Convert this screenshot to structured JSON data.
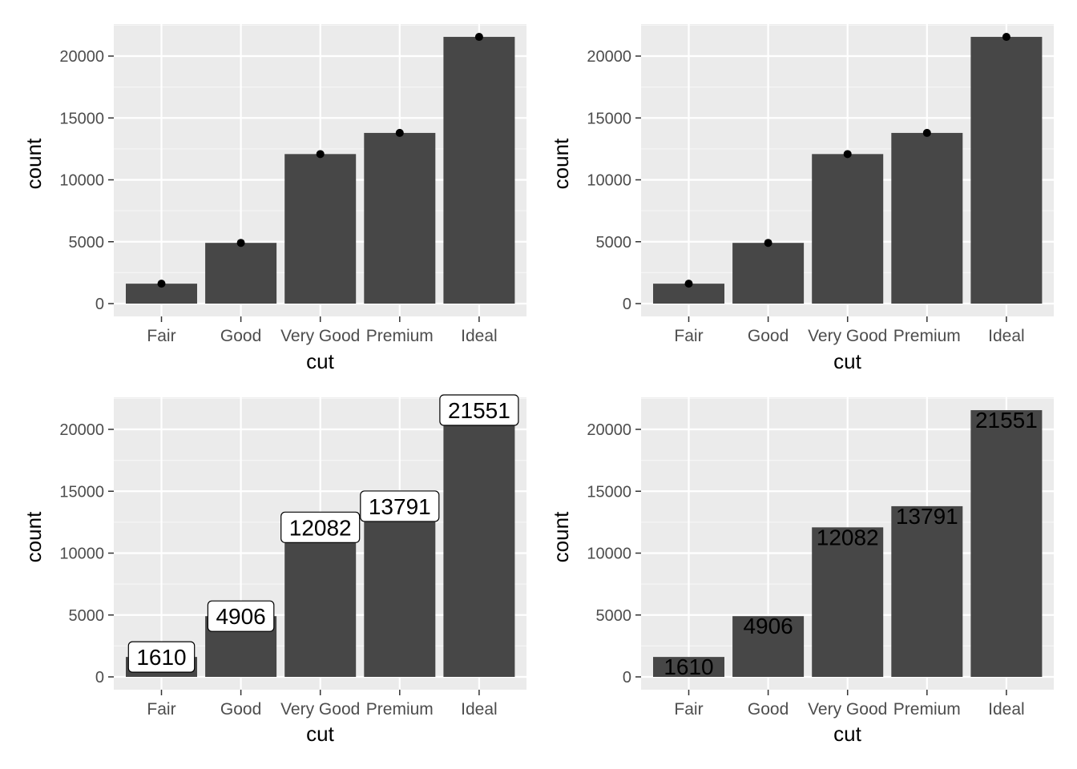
{
  "chart_data": [
    {
      "type": "bar",
      "overlay": "point",
      "categories": [
        "Fair",
        "Good",
        "Very Good",
        "Premium",
        "Ideal"
      ],
      "values": [
        1610,
        4906,
        12082,
        13791,
        21551
      ],
      "xlabel": "cut",
      "ylabel": "count",
      "yticks": [
        "0",
        "5000",
        "10000",
        "15000",
        "20000"
      ],
      "ylim": [
        0,
        22500
      ],
      "grid": true,
      "colors": {
        "bar": "#474747",
        "panel": "#ebebeb",
        "point": "#000000"
      }
    },
    {
      "type": "bar",
      "overlay": "point",
      "categories": [
        "Fair",
        "Good",
        "Very Good",
        "Premium",
        "Ideal"
      ],
      "values": [
        1610,
        4906,
        12082,
        13791,
        21551
      ],
      "xlabel": "cut",
      "ylabel": "count",
      "yticks": [
        "0",
        "5000",
        "10000",
        "15000",
        "20000"
      ],
      "ylim": [
        0,
        22500
      ],
      "grid": true,
      "colors": {
        "bar": "#474747",
        "panel": "#ebebeb",
        "point": "#000000"
      }
    },
    {
      "type": "bar",
      "overlay": "label-box",
      "categories": [
        "Fair",
        "Good",
        "Very Good",
        "Premium",
        "Ideal"
      ],
      "values": [
        1610,
        4906,
        12082,
        13791,
        21551
      ],
      "labels": [
        "1610",
        "4906",
        "12082",
        "13791",
        "21551"
      ],
      "xlabel": "cut",
      "ylabel": "count",
      "yticks": [
        "0",
        "5000",
        "10000",
        "15000",
        "20000"
      ],
      "ylim": [
        0,
        22500
      ],
      "grid": true,
      "colors": {
        "bar": "#474747",
        "panel": "#ebebeb",
        "label_fill": "#ffffff"
      }
    },
    {
      "type": "bar",
      "overlay": "text",
      "categories": [
        "Fair",
        "Good",
        "Very Good",
        "Premium",
        "Ideal"
      ],
      "values": [
        1610,
        4906,
        12082,
        13791,
        21551
      ],
      "labels": [
        "1610",
        "4906",
        "12082",
        "13791",
        "21551"
      ],
      "xlabel": "cut",
      "ylabel": "count",
      "yticks": [
        "0",
        "5000",
        "10000",
        "15000",
        "20000"
      ],
      "ylim": [
        0,
        22500
      ],
      "grid": true,
      "colors": {
        "bar": "#474747",
        "panel": "#ebebeb",
        "text": "#000000"
      }
    }
  ]
}
